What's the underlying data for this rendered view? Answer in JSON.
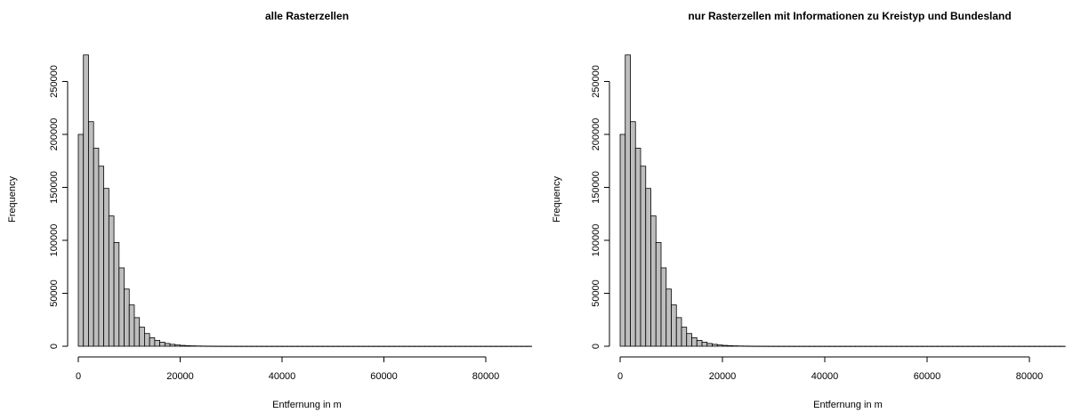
{
  "chart_data": [
    {
      "type": "bar",
      "title": "alle Rasterzellen",
      "xlabel": "Entfernung in m",
      "ylabel": "Frequency",
      "bin_width": 1000,
      "xlim": [
        0,
        90000
      ],
      "ylim": [
        0,
        280000
      ],
      "x_ticks": [
        0,
        20000,
        40000,
        60000,
        80000
      ],
      "y_ticks": [
        0,
        50000,
        100000,
        150000,
        200000,
        250000
      ],
      "bins_start": 0,
      "values": [
        200000,
        275000,
        212000,
        187000,
        170000,
        149000,
        123000,
        98000,
        74000,
        54000,
        39000,
        27000,
        18000,
        12000,
        8000,
        5500,
        3800,
        2600,
        1800,
        1200,
        800,
        550,
        380,
        260,
        180,
        120,
        80,
        60,
        40,
        30,
        20,
        15,
        10,
        8,
        6,
        5,
        4,
        3,
        3,
        2,
        2,
        2,
        1,
        1,
        1,
        1,
        1,
        1,
        1,
        1,
        1,
        1,
        1,
        1,
        1,
        1,
        1,
        1,
        1,
        1,
        1,
        1,
        1,
        1,
        1,
        1,
        1,
        1,
        1,
        1,
        1,
        1,
        1,
        1,
        1,
        1,
        1,
        1,
        1,
        1,
        1,
        1,
        1,
        1,
        1,
        1,
        1,
        1,
        1
      ],
      "grid": false
    },
    {
      "type": "bar",
      "title": "nur Rasterzellen mit Informationen zu Kreistyp und Bundesland",
      "xlabel": "Entfernung in m",
      "ylabel": "Frequency",
      "bin_width": 1000,
      "xlim": [
        0,
        88000
      ],
      "ylim": [
        0,
        280000
      ],
      "x_ticks": [
        0,
        20000,
        40000,
        60000,
        80000
      ],
      "y_ticks": [
        0,
        50000,
        100000,
        150000,
        200000,
        250000
      ],
      "bins_start": 0,
      "values": [
        200000,
        275000,
        212000,
        187000,
        170000,
        149000,
        123000,
        98000,
        74000,
        54000,
        39000,
        27000,
        18000,
        12000,
        8000,
        5500,
        3800,
        2600,
        1800,
        1200,
        800,
        550,
        380,
        260,
        180,
        120,
        80,
        60,
        40,
        30,
        20,
        15,
        10,
        8,
        6,
        5,
        4,
        3,
        3,
        2,
        2,
        2,
        1,
        1,
        1,
        1,
        1,
        1,
        1,
        1,
        1,
        1,
        1,
        1,
        1,
        1,
        1,
        1,
        1,
        1,
        1,
        1,
        1,
        1,
        1,
        1,
        1,
        1,
        1,
        1,
        1,
        1,
        1,
        1,
        1,
        1,
        1,
        1,
        1,
        1,
        1,
        1,
        1,
        1,
        1,
        1,
        1
      ],
      "grid": false
    }
  ]
}
